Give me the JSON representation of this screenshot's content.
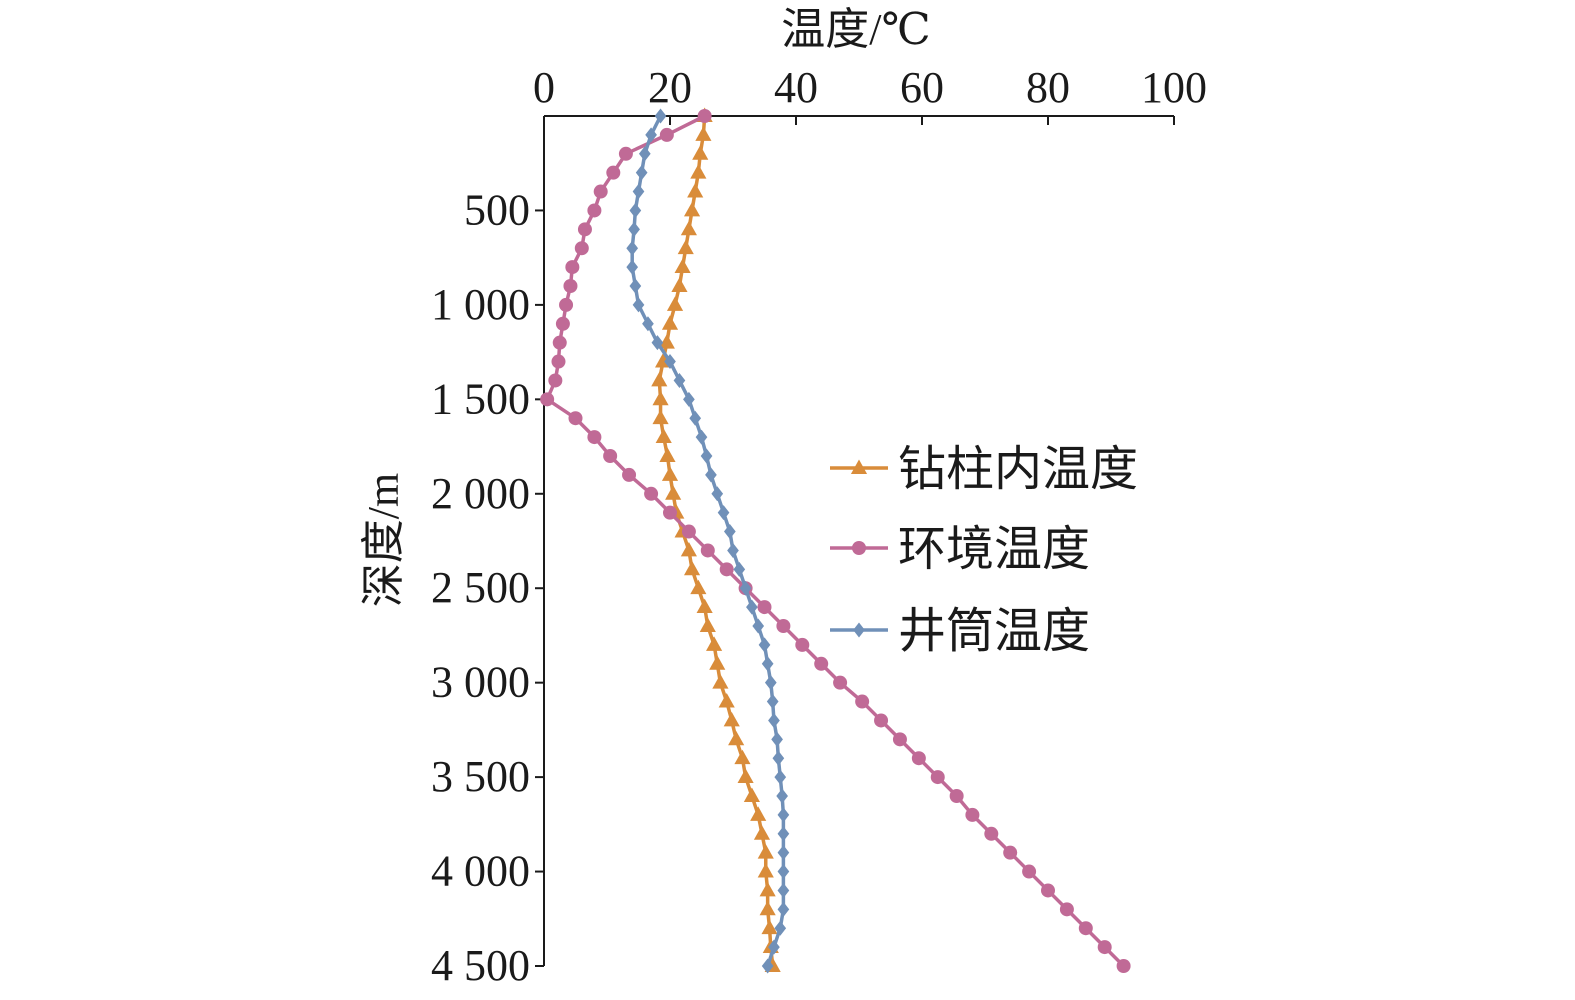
{
  "chart_data": {
    "type": "line",
    "title": "",
    "xlabel": "温度/℃",
    "ylabel": "深度/m",
    "x_axis_position": "top",
    "y_axis_inverted": true,
    "xlim": [
      0,
      100
    ],
    "ylim": [
      0,
      4500
    ],
    "x_ticks": [
      0,
      20,
      40,
      60,
      80,
      100
    ],
    "x_tick_labels": [
      "0",
      "20",
      "40",
      "60",
      "80",
      "100"
    ],
    "y_ticks": [
      500,
      1000,
      1500,
      2000,
      2500,
      3000,
      3500,
      4000,
      4500
    ],
    "y_tick_labels": [
      "500",
      "1 000",
      "1 500",
      "2 000",
      "2 500",
      "3 000",
      "3 500",
      "4 000",
      "4 500"
    ],
    "grid": false,
    "legend_position": "right",
    "series": [
      {
        "name": "钻柱内温度",
        "color": "#d98c3a",
        "marker": "triangle",
        "depths": [
          0,
          100,
          200,
          300,
          400,
          500,
          600,
          700,
          800,
          900,
          1000,
          1100,
          1200,
          1300,
          1400,
          1500,
          1600,
          1700,
          1800,
          1900,
          2000,
          2100,
          2200,
          2300,
          2400,
          2500,
          2600,
          2700,
          2800,
          2900,
          3000,
          3100,
          3200,
          3300,
          3400,
          3500,
          3600,
          3700,
          3800,
          3900,
          4000,
          4100,
          4200,
          4300,
          4400,
          4500
        ],
        "values": [
          25.5,
          25.3,
          24.8,
          24.5,
          24.0,
          23.5,
          23.0,
          22.5,
          22.0,
          21.5,
          20.8,
          20.0,
          19.5,
          18.9,
          18.3,
          18.5,
          18.5,
          19.0,
          19.6,
          20.0,
          20.5,
          21.0,
          22.0,
          23.0,
          23.5,
          24.5,
          25.5,
          26.0,
          27.0,
          27.5,
          28.0,
          29.0,
          29.8,
          30.5,
          31.5,
          32.0,
          33.0,
          34.0,
          34.6,
          35.2,
          35.2,
          35.5,
          35.5,
          35.8,
          36.0,
          36.3
        ]
      },
      {
        "name": "环境温度",
        "color": "#c06a96",
        "marker": "circle",
        "depths": [
          0,
          100,
          200,
          300,
          400,
          500,
          600,
          700,
          800,
          900,
          1000,
          1100,
          1200,
          1300,
          1400,
          1500,
          1600,
          1700,
          1800,
          1900,
          2000,
          2100,
          2200,
          2300,
          2400,
          2500,
          2600,
          2700,
          2800,
          2900,
          3000,
          3100,
          3200,
          3300,
          3400,
          3500,
          3600,
          3700,
          3800,
          3900,
          4000,
          4100,
          4200,
          4300,
          4400,
          4500
        ],
        "values": [
          25.5,
          19.5,
          13.0,
          11.0,
          9.0,
          8.0,
          6.5,
          6.0,
          4.5,
          4.2,
          3.5,
          3.0,
          2.5,
          2.3,
          1.8,
          0.5,
          5.0,
          8.0,
          10.5,
          13.5,
          17.0,
          20.0,
          23.0,
          26.0,
          29.0,
          32.0,
          35.0,
          38.0,
          41.0,
          44.0,
          47.0,
          50.5,
          53.5,
          56.5,
          59.5,
          62.5,
          65.5,
          68.0,
          71.0,
          74.0,
          77.0,
          80.0,
          83.0,
          86.0,
          89.0,
          92.0
        ]
      },
      {
        "name": "井筒温度",
        "color": "#7090b8",
        "marker": "diamond",
        "depths": [
          0,
          100,
          200,
          300,
          400,
          500,
          600,
          700,
          800,
          900,
          1000,
          1100,
          1200,
          1300,
          1400,
          1500,
          1600,
          1700,
          1800,
          1900,
          2000,
          2100,
          2200,
          2300,
          2400,
          2500,
          2600,
          2700,
          2800,
          2900,
          3000,
          3100,
          3200,
          3300,
          3400,
          3500,
          3600,
          3700,
          3800,
          3900,
          4000,
          4100,
          4200,
          4300,
          4400,
          4500
        ],
        "values": [
          18.5,
          17.0,
          16.0,
          15.5,
          15.0,
          14.5,
          14.3,
          14.0,
          14.0,
          14.5,
          15.0,
          16.5,
          18.0,
          20.0,
          21.5,
          23.0,
          24.0,
          25.0,
          25.8,
          26.5,
          27.5,
          28.5,
          29.5,
          30.0,
          31.0,
          32.0,
          33.0,
          34.0,
          35.0,
          35.5,
          36.0,
          36.3,
          36.5,
          37.0,
          37.2,
          37.5,
          37.8,
          38.0,
          38.0,
          38.0,
          38.0,
          38.0,
          38.0,
          37.5,
          36.5,
          35.5
        ]
      }
    ]
  }
}
